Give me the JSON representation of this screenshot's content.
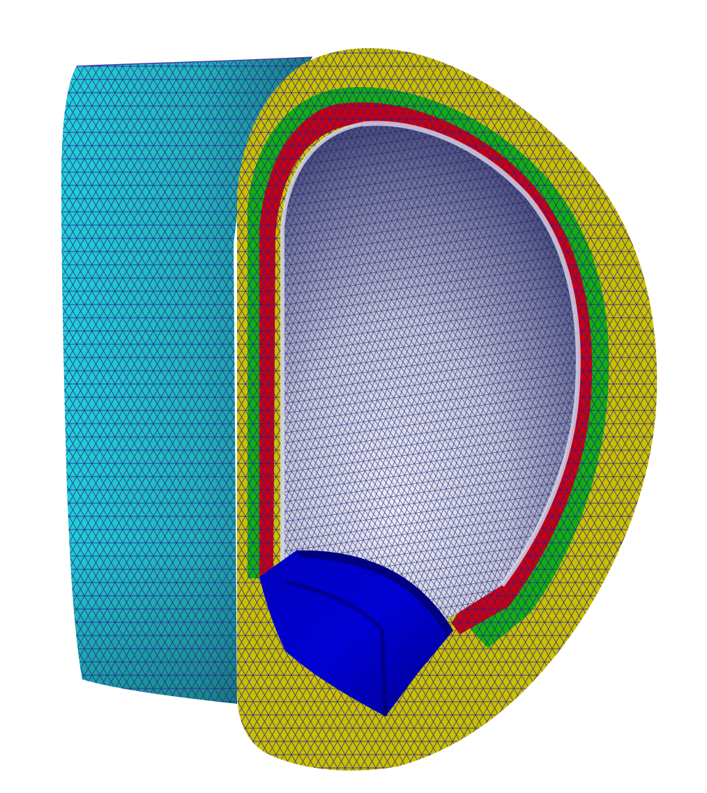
{
  "scene": {
    "description_label": "",
    "background": "#ffffff",
    "colors": {
      "outer_shell": "#20b5b8",
      "outer_shell_light": "#22d0d6",
      "outer_shell_dark": "#1a7f86",
      "layer_yellow": "#c9c000",
      "layer_green": "#10b010",
      "layer_red": "#c80010",
      "inner_surface_light": "#e6e8f0",
      "inner_surface_dark": "#2e3362",
      "divertor": "#0000d0",
      "divertor_dark": "#000078",
      "mesh_edges": "#2a1f8f"
    },
    "parts": [
      "outer-shell",
      "yellow-layer",
      "green-layer",
      "red-layer",
      "plasma-chamber",
      "divertor"
    ]
  }
}
